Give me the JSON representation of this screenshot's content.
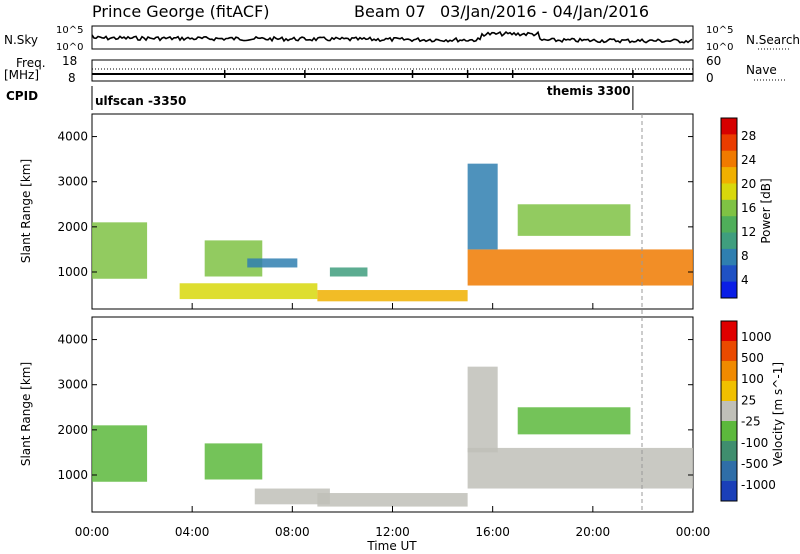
{
  "header": {
    "station": "Prince George (fitACF)",
    "beam": "Beam 07",
    "date_range": "03/Jan/2016 - 04/Jan/2016"
  },
  "nsky_panel": {
    "left_label": "N.Sky",
    "right_label": "N.Search",
    "tick_top": "10^5",
    "tick_bottom": "10^0"
  },
  "freq_panel": {
    "left_label_line1": "Freq.",
    "left_label_line2": "[MHz]",
    "right_label": "Nave",
    "left_ticks": [
      "18",
      "8"
    ],
    "right_ticks": [
      "60",
      "0"
    ]
  },
  "cpid_panel": {
    "label": "CPID",
    "modes": [
      {
        "name": "ulfscan -3350",
        "start_hour": 0.0,
        "end_hour": 21.6
      },
      {
        "name": "themis 3300",
        "start_hour": 21.6,
        "end_hour": 24.0
      }
    ]
  },
  "x_axis": {
    "label": "Time UT",
    "ticks": [
      "00:00",
      "04:00",
      "08:00",
      "12:00",
      "16:00",
      "20:00",
      "00:00"
    ]
  },
  "chart_data": [
    {
      "type": "heatmap",
      "title": "",
      "xlabel": "",
      "ylabel": "Slant Range [km]",
      "xlim": [
        0,
        24
      ],
      "ylim": [
        180,
        4500
      ],
      "y_ticks": [
        "1000",
        "2000",
        "3000",
        "4000"
      ],
      "colorbar": {
        "label": "Power [dB]",
        "ticks": [
          "28",
          "24",
          "20",
          "16",
          "12",
          "8",
          "4"
        ],
        "range": [
          0,
          30
        ],
        "colors": [
          "#0a1ee6",
          "#1f51c4",
          "#2f7fb0",
          "#3f9e7e",
          "#4fae5a",
          "#7fc244",
          "#d8d80c",
          "#f0b000",
          "#f07a00",
          "#ea3c00",
          "#d60000"
        ]
      },
      "echo_regions_hours_km": [
        {
          "t0": 0.0,
          "t1": 2.2,
          "r0": 850,
          "r1": 2100,
          "power": 14
        },
        {
          "t0": 4.5,
          "t1": 6.8,
          "r0": 900,
          "r1": 1700,
          "power": 16
        },
        {
          "t0": 6.2,
          "t1": 8.2,
          "r0": 1100,
          "r1": 1300,
          "power": 8
        },
        {
          "t0": 9.5,
          "t1": 11.0,
          "r0": 900,
          "r1": 1100,
          "power": 10
        },
        {
          "t0": 3.5,
          "t1": 9.0,
          "r0": 400,
          "r1": 750,
          "power": 18
        },
        {
          "t0": 9.0,
          "t1": 15.0,
          "r0": 350,
          "r1": 600,
          "power": 20
        },
        {
          "t0": 15.0,
          "t1": 24.0,
          "r0": 700,
          "r1": 1500,
          "power": 22
        },
        {
          "t0": 17.0,
          "t1": 21.5,
          "r0": 1800,
          "r1": 2500,
          "power": 14
        },
        {
          "t0": 15.0,
          "t1": 16.2,
          "r0": 1500,
          "r1": 3400,
          "power": 8
        }
      ]
    },
    {
      "type": "heatmap",
      "title": "",
      "xlabel": "Time UT",
      "ylabel": "Slant Range [km]",
      "xlim": [
        0,
        24
      ],
      "ylim": [
        180,
        4500
      ],
      "y_ticks": [
        "1000",
        "2000",
        "3000",
        "4000"
      ],
      "colorbar": {
        "label": "Velocity [m s^-1]",
        "ticks": [
          "1000",
          "500",
          "100",
          "25",
          "-25",
          "-100",
          "-500",
          "-1000"
        ],
        "range": [
          -1000,
          1000
        ],
        "colors": [
          "#1a3fb8",
          "#2f6ea8",
          "#3f8e6e",
          "#5cb83c",
          "#c0c0b8",
          "#f0c000",
          "#f08a00",
          "#ea4a00",
          "#e00000"
        ]
      },
      "echo_regions_hours_km": [
        {
          "t0": 0.0,
          "t1": 2.2,
          "r0": 850,
          "r1": 2100,
          "velocity": -120
        },
        {
          "t0": 4.5,
          "t1": 6.8,
          "r0": 900,
          "r1": 1700,
          "velocity": -300
        },
        {
          "t0": 6.5,
          "t1": 9.5,
          "r0": 350,
          "r1": 700,
          "velocity": 0
        },
        {
          "t0": 9.0,
          "t1": 15.0,
          "r0": 300,
          "r1": 600,
          "velocity": 80
        },
        {
          "t0": 15.0,
          "t1": 24.0,
          "r0": 700,
          "r1": 1600,
          "velocity": 0
        },
        {
          "t0": 17.0,
          "t1": 21.5,
          "r0": 1900,
          "r1": 2500,
          "velocity": -200
        },
        {
          "t0": 15.0,
          "t1": 16.2,
          "r0": 1500,
          "r1": 3400,
          "velocity": 60
        }
      ]
    }
  ]
}
